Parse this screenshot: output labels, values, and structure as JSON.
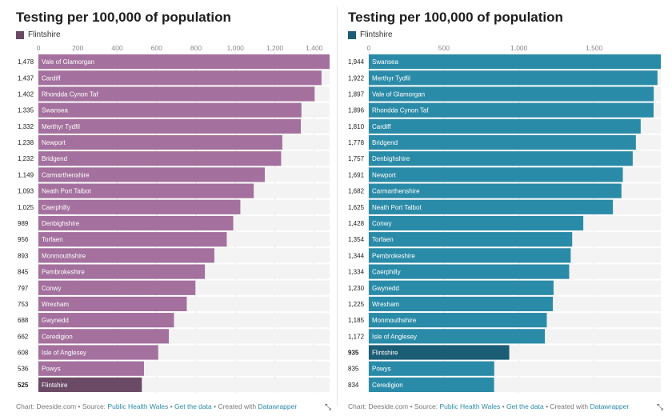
{
  "left": {
    "title": "Testing per 100,000 of population",
    "legend_label": "Flintshire",
    "bar_color": "#a4709e",
    "highlight_color": "#6b4a66",
    "footer": {
      "chart": "Chart: Deeside.com",
      "sep1": " • Source: ",
      "source": "Public Health Wales",
      "sep2": " • ",
      "get_data": "Get the data",
      "sep3": " • Created with ",
      "tool": "Datawrapper"
    }
  },
  "right": {
    "title": "Testing per 100,000 of population",
    "legend_label": "Flintshire",
    "bar_color": "#2a8ba8",
    "highlight_color": "#1b5d74",
    "footer": {
      "chart": "Chart: Deeside.com",
      "sep1": " • Source: ",
      "source": "Public Health Wales",
      "sep2": " • ",
      "get_data": "Get the data",
      "sep3": " • Created with ",
      "tool": "Datawrapper"
    }
  },
  "resize_icon": "resize-corner-icon",
  "chart_data": [
    {
      "type": "bar",
      "orientation": "horizontal",
      "title": "Testing per 100,000 of population",
      "xlim": [
        0,
        1478
      ],
      "ticks": [
        0,
        200,
        400,
        600,
        800,
        1000,
        1200,
        1400
      ],
      "tick_labels": [
        "0",
        "200",
        "400",
        "600",
        "800",
        "1,000",
        "1,200",
        "1,400"
      ],
      "highlight": "Flintshire",
      "categories": [
        "Vale of Glamorgan",
        "Cardiff",
        "Rhondda Cynon Taf",
        "Swansea",
        "Merthyr Tydfil",
        "Newport",
        "Bridgend",
        "Carmarthenshire",
        "Neath Port Talbot",
        "Caerphilly",
        "Denbighshire",
        "Torfaen",
        "Monmouthshire",
        "Pembrokeshire",
        "Conwy",
        "Wrexham",
        "Gwynedd",
        "Ceredigion",
        "Isle of Anglesey",
        "Powys",
        "Flintshire"
      ],
      "values": [
        1478,
        1437,
        1402,
        1335,
        1332,
        1238,
        1232,
        1149,
        1093,
        1025,
        989,
        956,
        893,
        845,
        797,
        753,
        688,
        662,
        608,
        536,
        525
      ],
      "value_labels": [
        "1,478",
        "1,437",
        "1,402",
        "1,335",
        "1,332",
        "1,238",
        "1,232",
        "1,149",
        "1,093",
        "1,025",
        "989",
        "956",
        "893",
        "845",
        "797",
        "753",
        "688",
        "662",
        "608",
        "536",
        "525"
      ]
    },
    {
      "type": "bar",
      "orientation": "horizontal",
      "title": "Testing per 100,000 of population",
      "xlim": [
        0,
        1944
      ],
      "ticks": [
        0,
        500,
        1000,
        1500
      ],
      "tick_labels": [
        "0",
        "500",
        "1,000",
        "1,500"
      ],
      "highlight": "Flintshire",
      "categories": [
        "Swansea",
        "Merthyr Tydfil",
        "Vale of Glamorgan",
        "Rhondda Cynon Taf",
        "Cardiff",
        "Bridgend",
        "Denbighshire",
        "Newport",
        "Carmarthenshire",
        "Neath Port Talbot",
        "Conwy",
        "Torfaen",
        "Pembrokeshire",
        "Caerphilly",
        "Gwynedd",
        "Wrexham",
        "Monmouthshire",
        "Isle of Anglesey",
        "Flintshire",
        "Powys",
        "Ceredigion"
      ],
      "values": [
        1944,
        1922,
        1897,
        1896,
        1810,
        1778,
        1757,
        1691,
        1682,
        1625,
        1428,
        1354,
        1344,
        1334,
        1230,
        1225,
        1185,
        1172,
        935,
        835,
        834
      ],
      "value_labels": [
        "1,944",
        "1,922",
        "1,897",
        "1,896",
        "1,810",
        "1,778",
        "1,757",
        "1,691",
        "1,682",
        "1,625",
        "1,428",
        "1,354",
        "1,344",
        "1,334",
        "1,230",
        "1,225",
        "1,185",
        "1,172",
        "935",
        "835",
        "834"
      ]
    }
  ]
}
